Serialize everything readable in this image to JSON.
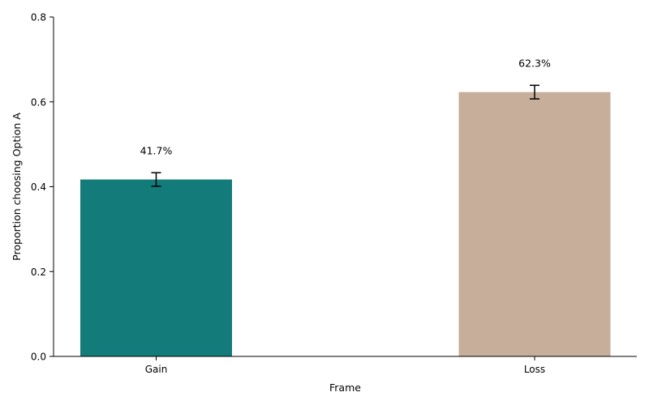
{
  "chart_data": {
    "type": "bar",
    "categories": [
      "Gain",
      "Loss"
    ],
    "values": [
      0.417,
      0.623
    ],
    "error": [
      0.016,
      0.016
    ],
    "data_labels": [
      "41.7%",
      "62.3%"
    ],
    "colors": [
      "#137b79",
      "#c7ae9a"
    ],
    "xlabel": "Frame",
    "ylabel": "Proportion choosing Option A",
    "ylim": [
      0,
      0.8
    ],
    "yticks": [
      "0.0",
      "0.2",
      "0.4",
      "0.6",
      "0.8"
    ],
    "ytick_values": [
      0,
      0.2,
      0.4,
      0.6,
      0.8
    ],
    "grid": false,
    "legend": "none"
  }
}
